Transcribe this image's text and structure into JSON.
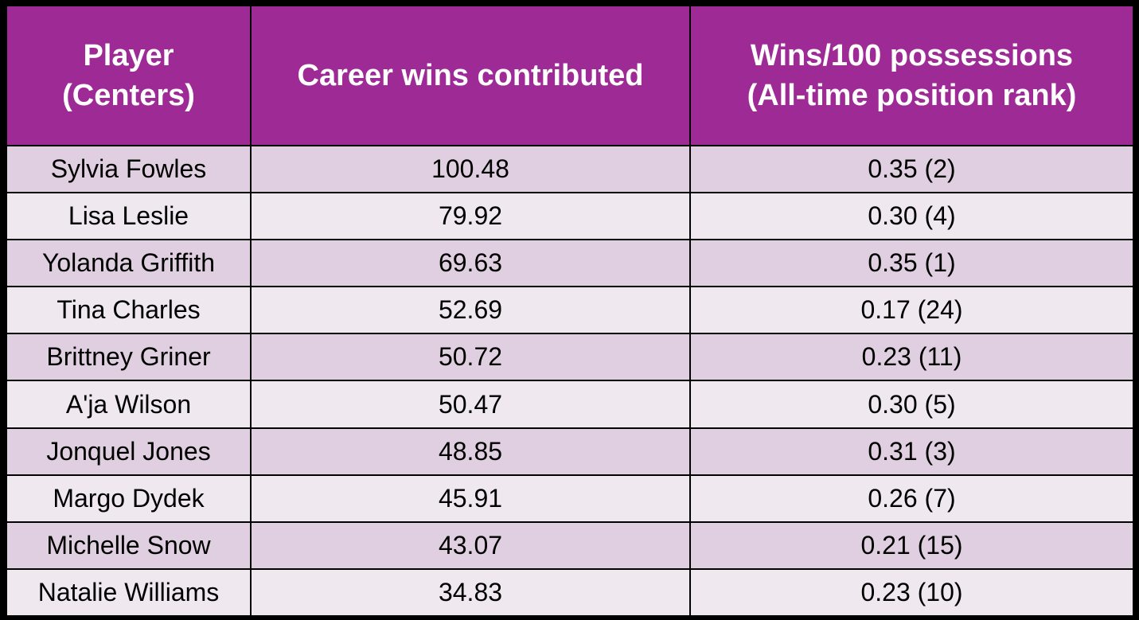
{
  "table": {
    "header": [
      [
        "Player",
        "(Centers)"
      ],
      [
        "Career wins contributed"
      ],
      [
        "Wins/100 possessions",
        "(All-time position rank)"
      ]
    ],
    "rows": [
      [
        "Sylvia Fowles",
        "100.48",
        "0.35 (2)"
      ],
      [
        "Lisa Leslie",
        "79.92",
        "0.30 (4)"
      ],
      [
        "Yolanda Griffith",
        "69.63",
        "0.35 (1)"
      ],
      [
        "Tina Charles",
        "52.69",
        "0.17 (24)"
      ],
      [
        "Brittney Griner",
        "50.72",
        "0.23 (11)"
      ],
      [
        "A'ja Wilson",
        "50.47",
        "0.30 (5)"
      ],
      [
        "Jonquel Jones",
        "48.85",
        "0.31 (3)"
      ],
      [
        "Margo Dydek",
        "45.91",
        "0.26 (7)"
      ],
      [
        "Michelle Snow",
        "43.07",
        "0.21 (15)"
      ],
      [
        "Natalie Williams",
        "34.83",
        "0.23 (10)"
      ]
    ]
  }
}
